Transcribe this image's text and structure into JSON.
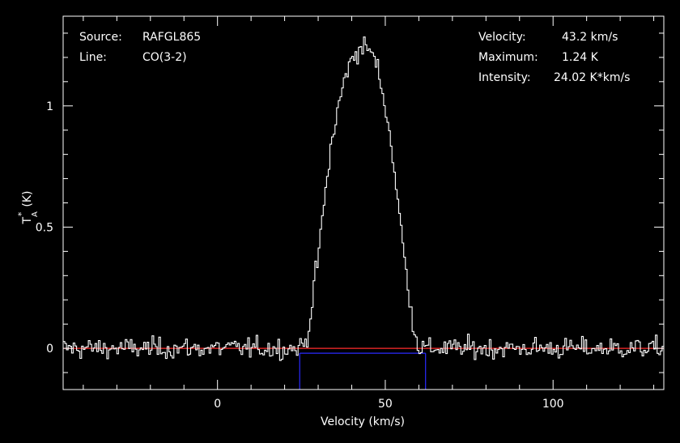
{
  "chart_data": {
    "type": "line",
    "xlabel": "Velocity (km/s)",
    "ylabel": "T",
    "ylabel_super": "*",
    "ylabel_sub": "A",
    "ylabel_units": "(K)",
    "xlim": [
      -46,
      133
    ],
    "ylim": [
      -0.17,
      1.37
    ],
    "x_ticks": [
      0,
      50,
      100
    ],
    "x_tick_labels": [
      "0",
      "50",
      "100"
    ],
    "y_ticks": [
      0,
      0.5,
      1
    ],
    "y_tick_labels": [
      "0",
      "0.5",
      "1"
    ],
    "grid": false,
    "info_left": [
      {
        "label": "Source:",
        "value": "RAFGL865"
      },
      {
        "label": "Line:",
        "value": "CO(3-2)"
      }
    ],
    "info_right": [
      {
        "label": "Velocity:",
        "value": "43.2 km/s"
      },
      {
        "label": "Maximum:",
        "value": "1.24 K"
      },
      {
        "label": "Intensity:",
        "value": "24.02 K*km/s"
      }
    ],
    "baseline_level": 0.0,
    "integration_window": {
      "x_start": 24.5,
      "x_end": 62.0,
      "level": -0.02
    },
    "series": [
      {
        "profile_x": [
          -46,
          24,
          26,
          27,
          28,
          30,
          32,
          34,
          36,
          38,
          40,
          41,
          42,
          43,
          44,
          45,
          46,
          47,
          48,
          50,
          52,
          54,
          56,
          58,
          59,
          60,
          61,
          133
        ],
        "profile_y": [
          0,
          0,
          0.02,
          0.06,
          0.17,
          0.38,
          0.62,
          0.85,
          0.99,
          1.12,
          1.19,
          1.22,
          1.23,
          1.24,
          1.24,
          1.24,
          1.22,
          1.18,
          1.14,
          1.0,
          0.82,
          0.58,
          0.34,
          0.13,
          0.05,
          0.01,
          0,
          0
        ],
        "noise_rms": 0.03,
        "channel_width": 0.5
      }
    ],
    "colors": {
      "background": "#000000",
      "axes": "#ffffff",
      "spectrum": "#ffffff",
      "baseline": "#ff2a2a",
      "window": "#2a2aff"
    }
  }
}
